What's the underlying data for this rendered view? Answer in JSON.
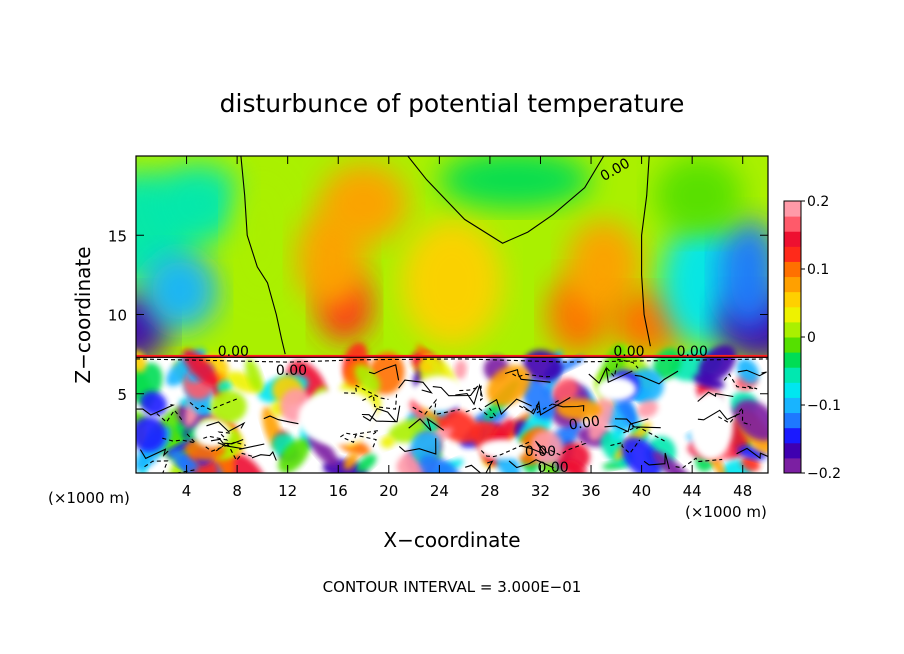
{
  "chart_data": {
    "type": "heatmap",
    "title": "disturbunce of potential temperature",
    "xlabel": "X−coordinate",
    "ylabel": "Z−coordinate",
    "x_unit_left": "(×1000 m)",
    "x_unit_right": "(×1000 m)",
    "xlim": [
      0,
      50
    ],
    "ylim": [
      0,
      20
    ],
    "x_ticks": [
      "4",
      "8",
      "12",
      "16",
      "20",
      "24",
      "28",
      "32",
      "36",
      "40",
      "44",
      "48"
    ],
    "x_tick_values": [
      4,
      8,
      12,
      16,
      20,
      24,
      28,
      32,
      36,
      40,
      44,
      48
    ],
    "y_ticks": [
      "5",
      "10",
      "15"
    ],
    "y_tick_values": [
      5,
      10,
      15
    ],
    "colorbar": {
      "min": -0.2,
      "max": 0.2,
      "tick_labels": [
        "0.2",
        "0.1",
        "0",
        "−0.1",
        "−0.2"
      ],
      "tick_values": [
        0.2,
        0.1,
        0,
        -0.1,
        -0.2
      ],
      "colors": [
        "#7b1fa2",
        "#3f00b0",
        "#1a1aff",
        "#1e78ff",
        "#18b4ff",
        "#00e6f0",
        "#00e8b0",
        "#00dd55",
        "#55e000",
        "#aaf000",
        "#eef200",
        "#ffd000",
        "#ffa000",
        "#ff7000",
        "#ff2a1a",
        "#ee1030",
        "#ff5a6a",
        "#ff9aa8"
      ]
    },
    "contour_labels": [
      "0.00",
      "0.00",
      "0.00",
      "0.00",
      "0.00",
      "0.00",
      "0.00",
      "0.00"
    ],
    "footer": "CONTOUR INTERVAL = 3.000E−01"
  }
}
